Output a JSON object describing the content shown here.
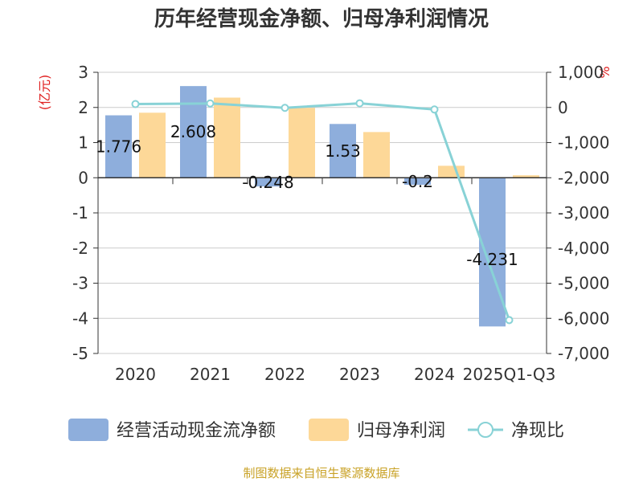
{
  "title": "历年经营现金净额、归母净利润情况",
  "source": "制图数据来自恒生聚源数据库",
  "y_left_unit": "(亿元)",
  "y_right_unit": "%",
  "colors": {
    "cash": "#8eaedc",
    "profit": "#fdd898",
    "ratio": "#88d2d6",
    "grid": "#cccccc",
    "axis": "#333333"
  },
  "chart_data": {
    "type": "bar",
    "categories": [
      "2020",
      "2021",
      "2022",
      "2023",
      "2024",
      "2025Q1-Q3"
    ],
    "series": [
      {
        "name": "经营活动现金流净额",
        "type": "bar",
        "axis": "left",
        "values": [
          1.776,
          2.608,
          -0.248,
          1.53,
          -0.2,
          -4.231
        ]
      },
      {
        "name": "归母净利润",
        "type": "bar",
        "axis": "left",
        "values": [
          1.85,
          2.28,
          1.99,
          1.3,
          0.34,
          0.07
        ]
      },
      {
        "name": "净现比",
        "type": "line",
        "axis": "right",
        "values": [
          96,
          114,
          -12,
          118,
          -58,
          -6050
        ]
      }
    ],
    "data_labels": [
      "1.776",
      "2.608",
      "-0.248",
      "1.53",
      "-0.2",
      "-4.231"
    ],
    "y_left": {
      "min": -5,
      "max": 3,
      "ticks": [
        "3",
        "2",
        "1",
        "0",
        "-1",
        "-2",
        "-3",
        "-4",
        "-5"
      ]
    },
    "y_right": {
      "min": -7000,
      "max": 1000,
      "ticks": [
        "1,000",
        "0",
        "-1,000",
        "-2,000",
        "-3,000",
        "-4,000",
        "-5,000",
        "-6,000",
        "-7,000"
      ]
    },
    "grid": true,
    "legend": "bottom"
  }
}
